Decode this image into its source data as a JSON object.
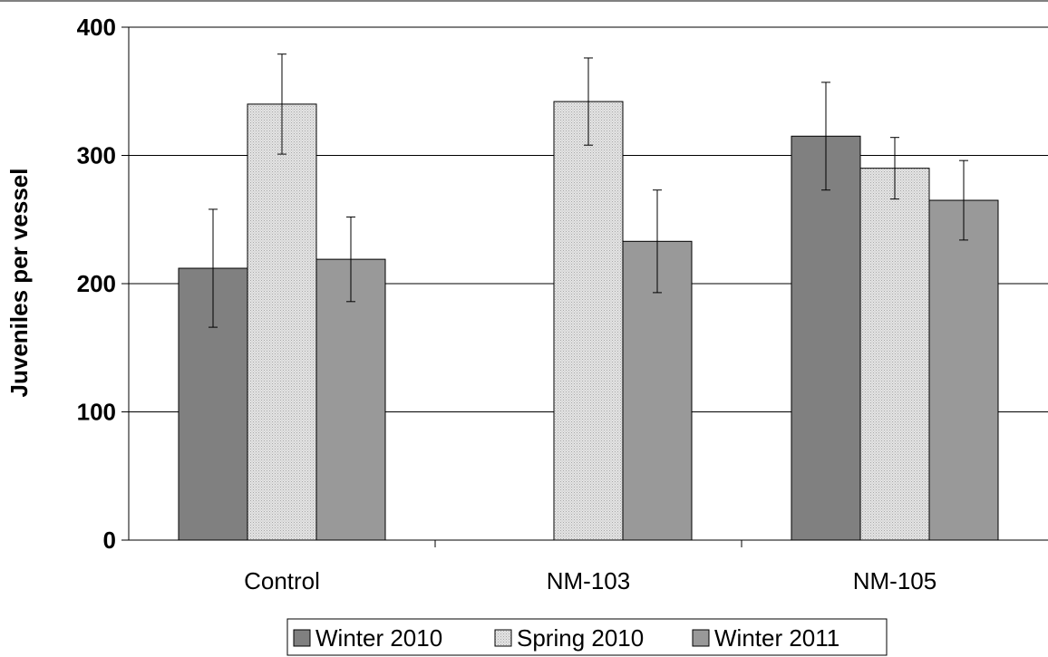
{
  "chart_data": {
    "type": "bar",
    "title": "",
    "xlabel": "",
    "ylabel": "Juveniles per vessel",
    "ylim": [
      0,
      400
    ],
    "yticks": [
      0,
      100,
      200,
      300,
      400
    ],
    "ytick_labels": [
      "0",
      "100",
      "200",
      "300",
      "400"
    ],
    "grid": true,
    "legend_position": "bottom",
    "categories": [
      "Control",
      "NM-103",
      "NM-105"
    ],
    "series": [
      {
        "name": "Winter 2010",
        "values": [
          212,
          null,
          315
        ],
        "errors": [
          46,
          null,
          42
        ],
        "color": "#808080",
        "pattern": "solid"
      },
      {
        "name": "Spring 2010",
        "values": [
          340,
          342,
          290
        ],
        "errors": [
          39,
          34,
          24
        ],
        "color": "#d8d8d8",
        "pattern": "dotted"
      },
      {
        "name": "Winter 2011",
        "values": [
          219,
          233,
          265
        ],
        "errors": [
          33,
          40,
          31
        ],
        "color": "#999999",
        "pattern": "solid"
      }
    ]
  }
}
